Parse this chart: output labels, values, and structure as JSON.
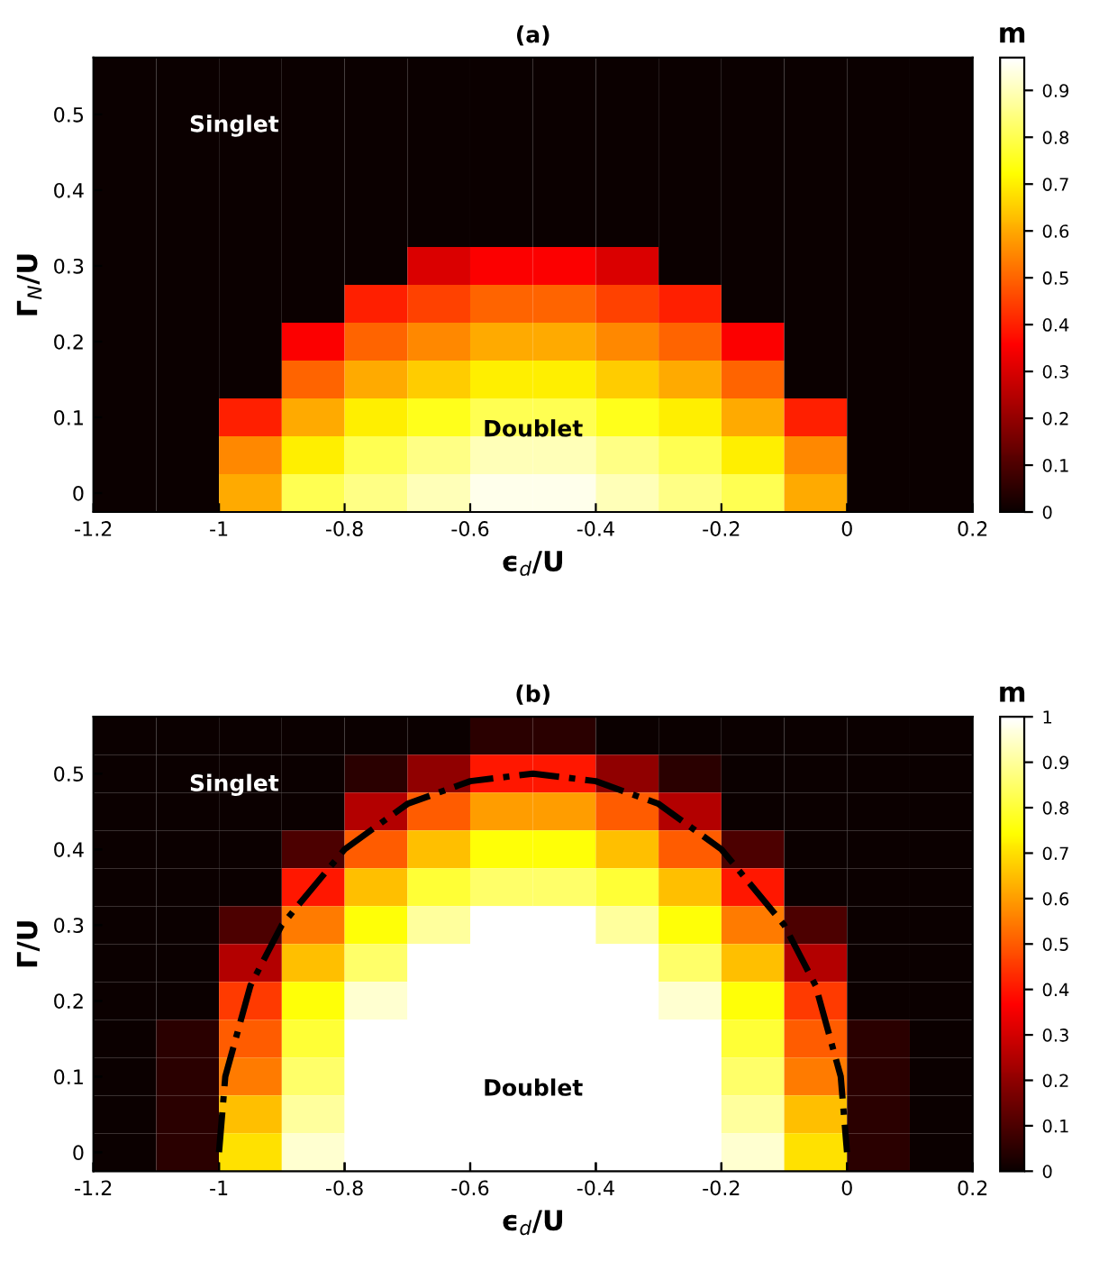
{
  "chart_data": [
    {
      "type": "heatmap",
      "title": "(a)",
      "xlabel": "ϵ$_{d}$/U",
      "ylabel": "Γ$_{N}$/U",
      "clabel": "m",
      "x": [
        -1.15,
        -1.05,
        -0.95,
        -0.85,
        -0.75,
        -0.65,
        -0.55,
        -0.45,
        -0.35,
        -0.25,
        -0.15,
        -0.05,
        0.05,
        0.15
      ],
      "y_categories": [
        null,
        "0.5",
        null,
        "0.4",
        null,
        "0.3",
        null,
        "0.2",
        null,
        "0.1",
        null,
        "0"
      ],
      "xlim": [
        -1.2,
        0.2
      ],
      "xticks": [
        -1.2,
        -1,
        -0.8,
        -0.6,
        -0.4,
        -0.2,
        0,
        0.2
      ],
      "clim": [
        0,
        0.97
      ],
      "cticks": [
        0,
        0.1,
        0.2,
        0.3,
        0.4,
        0.5,
        0.6,
        0.7,
        0.8,
        0.9
      ],
      "cells": [
        [
          0,
          0,
          0,
          0,
          0,
          0,
          0,
          0,
          0,
          0,
          0,
          0,
          0,
          0
        ],
        [
          0,
          0,
          0,
          0,
          0,
          0,
          0,
          0,
          0,
          0,
          0,
          0,
          0,
          0
        ],
        [
          0,
          0,
          0,
          0,
          0,
          0,
          0,
          0,
          0,
          0,
          0,
          0,
          0,
          0
        ],
        [
          0,
          0,
          0,
          0,
          0,
          0,
          0,
          0,
          0,
          0,
          0,
          0,
          0,
          0
        ],
        [
          0,
          0,
          0,
          0,
          0,
          0,
          0,
          0,
          0,
          0,
          0,
          0,
          0,
          0
        ],
        [
          0,
          0,
          0,
          0,
          0,
          0.3,
          0.35,
          0.35,
          0.3,
          0,
          0,
          0,
          0,
          0
        ],
        [
          0,
          0,
          0,
          0,
          0.4,
          0.45,
          0.5,
          0.5,
          0.45,
          0.4,
          0,
          0,
          0,
          0
        ],
        [
          0,
          0,
          0,
          0.35,
          0.5,
          0.55,
          0.6,
          0.6,
          0.55,
          0.5,
          0.35,
          0,
          0,
          0
        ],
        [
          0,
          0,
          0,
          0.5,
          0.6,
          0.65,
          0.7,
          0.7,
          0.65,
          0.6,
          0.5,
          0,
          0,
          0
        ],
        [
          0,
          0,
          0.4,
          0.6,
          0.7,
          0.75,
          0.8,
          0.8,
          0.75,
          0.7,
          0.6,
          0.4,
          0,
          0
        ],
        [
          0,
          0,
          0.55,
          0.7,
          0.8,
          0.85,
          0.9,
          0.9,
          0.85,
          0.8,
          0.7,
          0.55,
          0,
          0
        ],
        [
          0,
          0,
          0.6,
          0.8,
          0.85,
          0.9,
          0.95,
          0.95,
          0.9,
          0.85,
          0.8,
          0.6,
          0,
          0
        ]
      ],
      "annotations": [
        "Singlet",
        "Doublet"
      ]
    },
    {
      "type": "heatmap",
      "title": "(b)",
      "xlabel": "ϵ$_{d}$/U",
      "ylabel": "Γ/U",
      "clabel": "m",
      "x": [
        -1.15,
        -1.05,
        -0.95,
        -0.85,
        -0.75,
        -0.65,
        -0.55,
        -0.45,
        -0.35,
        -0.25,
        -0.15,
        -0.05,
        0.05,
        0.15
      ],
      "y_categories": [
        null,
        "0.5",
        null,
        "0.4",
        null,
        "0.3",
        null,
        "0.2",
        null,
        "0.1",
        null,
        "0"
      ],
      "xlim": [
        -1.2,
        0.2
      ],
      "xticks": [
        -1.2,
        -1,
        -0.8,
        -0.6,
        -0.4,
        -0.2,
        0,
        0.2
      ],
      "clim": [
        0,
        1
      ],
      "cticks": [
        0,
        0.1,
        0.2,
        0.3,
        0.4,
        0.5,
        0.6,
        0.7,
        0.8,
        0.9,
        1
      ],
      "cells": [
        [
          0,
          0,
          0,
          0,
          0,
          0,
          0.05,
          0.05,
          0,
          0,
          0,
          0,
          0,
          0
        ],
        [
          0,
          0,
          0,
          0,
          0.05,
          0.2,
          0.4,
          0.4,
          0.2,
          0.05,
          0,
          0,
          0,
          0
        ],
        [
          0,
          0,
          0,
          0,
          0.25,
          0.5,
          0.6,
          0.6,
          0.5,
          0.25,
          0,
          0,
          0,
          0
        ],
        [
          0,
          0,
          0,
          0.1,
          0.5,
          0.65,
          0.75,
          0.75,
          0.65,
          0.5,
          0.1,
          0,
          0,
          0
        ],
        [
          0,
          0,
          0,
          0.4,
          0.65,
          0.8,
          0.85,
          0.85,
          0.8,
          0.65,
          0.4,
          0,
          0,
          0
        ],
        [
          0,
          0,
          0.1,
          0.55,
          0.75,
          0.9,
          1,
          1,
          0.9,
          0.75,
          0.55,
          0.1,
          0,
          0
        ],
        [
          0,
          0,
          0.25,
          0.65,
          0.85,
          1,
          1,
          1,
          1,
          0.85,
          0.65,
          0.25,
          0,
          0
        ],
        [
          0,
          0,
          0.45,
          0.75,
          0.95,
          1,
          1,
          1,
          1,
          0.95,
          0.75,
          0.45,
          0,
          0
        ],
        [
          0,
          0.05,
          0.5,
          0.8,
          1,
          1,
          1,
          1,
          1,
          1,
          0.8,
          0.5,
          0.05,
          0
        ],
        [
          0,
          0.05,
          0.55,
          0.85,
          1,
          1,
          1,
          1,
          1,
          1,
          0.85,
          0.55,
          0.05,
          0
        ],
        [
          0,
          0.05,
          0.65,
          0.9,
          1,
          1,
          1,
          1,
          1,
          1,
          0.9,
          0.65,
          0.05,
          0
        ],
        [
          0,
          0.05,
          0.7,
          0.95,
          1,
          1,
          1,
          1,
          1,
          1,
          0.95,
          0.7,
          0.05,
          0
        ]
      ],
      "annotations": [
        "Singlet",
        "Doublet"
      ]
    },
    {
      "type": "line",
      "xlim": [
        -1.2,
        0.2
      ],
      "ylim": [
        -0.025,
        0.575
      ],
      "xticks": [
        -1.2,
        -1,
        -0.8,
        -0.6,
        -0.4,
        -0.2,
        0,
        0.2
      ],
      "yticks": [
        0,
        0.1,
        0.2,
        0.3,
        0.4,
        0.5
      ],
      "tick_labels": false,
      "line_style": "dashed",
      "series": [
        {
          "color": "#000000",
          "x": [
            -1,
            -0.99,
            -0.95,
            -0.9,
            -0.8,
            -0.7,
            -0.6,
            -0.5,
            -0.4,
            -0.3,
            -0.2,
            -0.1,
            -0.05,
            -0.01,
            0
          ],
          "values": [
            0,
            0.1,
            0.22,
            0.3,
            0.4,
            0.46,
            0.49,
            0.5,
            0.49,
            0.46,
            0.4,
            0.3,
            0.22,
            0.1,
            0
          ]
        }
      ]
    }
  ]
}
